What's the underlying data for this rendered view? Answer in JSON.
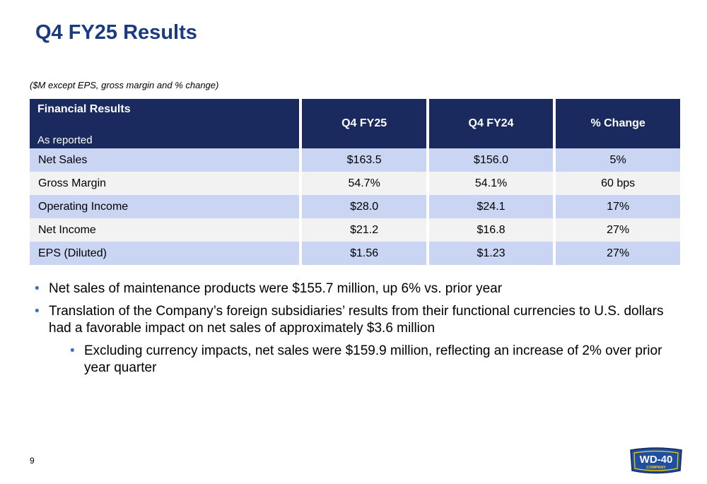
{
  "slide": {
    "title": "Q4 FY25 Results",
    "units_note": "($M except EPS, gross margin and % change)",
    "page_number": "9"
  },
  "table": {
    "header": {
      "label": "Financial Results",
      "sublabel": "As reported",
      "columns": [
        "Q4 FY25",
        "Q4 FY24",
        "% Change"
      ]
    },
    "rows": [
      {
        "label": "Net Sales",
        "q4fy25": "$163.5",
        "q4fy24": "$156.0",
        "change": "5%"
      },
      {
        "label": "Gross Margin",
        "q4fy25": "54.7%",
        "q4fy24": "54.1%",
        "change": "60 bps"
      },
      {
        "label": "Operating Income",
        "q4fy25": "$28.0",
        "q4fy24": "$24.1",
        "change": "17%"
      },
      {
        "label": "Net Income",
        "q4fy25": "$21.2",
        "q4fy24": "$16.8",
        "change": "27%"
      },
      {
        "label": "EPS (Diluted)",
        "q4fy25": "$1.56",
        "q4fy24": "$1.23",
        "change": "27%"
      }
    ]
  },
  "bullets": [
    "Net sales of maintenance products were $155.7 million, up 6% vs. prior year",
    "Translation of the Company’s foreign subsidiaries’ results from their functional currencies to U.S. dollars had a favorable impact on net sales of approximately $3.6 million",
    "Excluding currency impacts, net sales were $159.9 million, reflecting an increase of 2% over prior year quarter"
  ],
  "logo": {
    "brand": "WD-40",
    "sub": "COMPANY"
  },
  "colors": {
    "title": "#1b3a84",
    "header_bg": "#1a2a5e",
    "row_blue": "#c9d5f3",
    "row_gray": "#f2f2f2",
    "bullet": "#3a72c7"
  }
}
